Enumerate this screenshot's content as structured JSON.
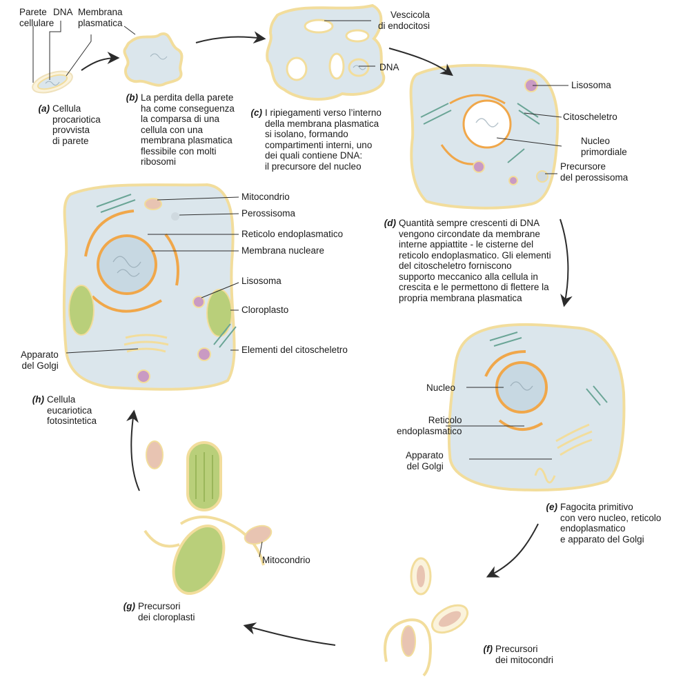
{
  "colors": {
    "cytoplasm": "#dbe6ec",
    "membrane": "#f2dd9c",
    "arrow": "#2b2b2b",
    "er": "#f0a74a",
    "lysosome": "#c99ac3",
    "chloroplast": "#b9cf7a",
    "cytoskeleton": "#6aa596",
    "mitochondrion": "#e8c4b2"
  },
  "labels": {
    "a_parete": "Parete\ncellulare",
    "a_dna": "DNA",
    "a_membrana": "Membrana\nplasmatica",
    "c_vescicola": "Vescicola\ndi endocitosi",
    "c_dna": "DNA",
    "d_lisosoma": "Lisosoma",
    "d_citoscheletro": "Citoscheletro",
    "d_nucleo": "Nucleo\nprimordiale",
    "d_perossisoma": "Precursore\ndel perossisoma",
    "h_mitocondrio": "Mitocondrio",
    "h_perossisoma": "Perossisoma",
    "h_reticolo": "Reticolo endoplasmatico",
    "h_membrana": "Membrana nucleare",
    "h_lisosoma": "Lisosoma",
    "h_cloroplasto": "Cloroplasto",
    "h_golgi": "Apparato\ndel Golgi",
    "h_citoscheletro": "Elementi del citoscheletro",
    "e_nucleo": "Nucleo",
    "e_reticolo": "Reticolo\nendoplasmatico",
    "e_golgi": "Apparato\ndel Golgi",
    "g_mitocondrio": "Mitocondrio"
  },
  "captions": {
    "a": {
      "tag": "(a)",
      "text": "Cellula\nprocariotica\nprovvista\ndi parete"
    },
    "b": {
      "tag": "(b)",
      "text": "La perdita della parete\nha come conseguenza\nla comparsa di una\ncellula con una\nmembrana plasmatica\nflessibile con molti\nribosomi"
    },
    "c": {
      "tag": "(c)",
      "text": "I ripiegamenti verso l’interno\ndella membrana plasmatica\nsi isolano, formando\ncompartimenti interni, uno\ndei quali contiene DNA:\nil precursore del nucleo"
    },
    "d": {
      "tag": "(d)",
      "text": "Quantità sempre crescenti di DNA\nvengono circondate da membrane\ninterne appiattite - le cisterne del\nreticolo endoplasmatico. Gli elementi\ndel citoscheletro forniscono\nsupporto meccanico alla cellula in\ncrescita e le permettono di flettere la\npropria membrana plasmatica"
    },
    "e": {
      "tag": "(e)",
      "text": "Fagocita primitivo\ncon vero nucleo, reticolo\nendoplasmatico\ne apparato del Golgi"
    },
    "f": {
      "tag": "(f)",
      "text": "Precursori\ndei mitocondri"
    },
    "g": {
      "tag": "(g)",
      "text": "Precursori\ndei cloroplasti"
    },
    "h": {
      "tag": "(h)",
      "text": "Cellula\neucariotica\nfotosintetica"
    }
  }
}
